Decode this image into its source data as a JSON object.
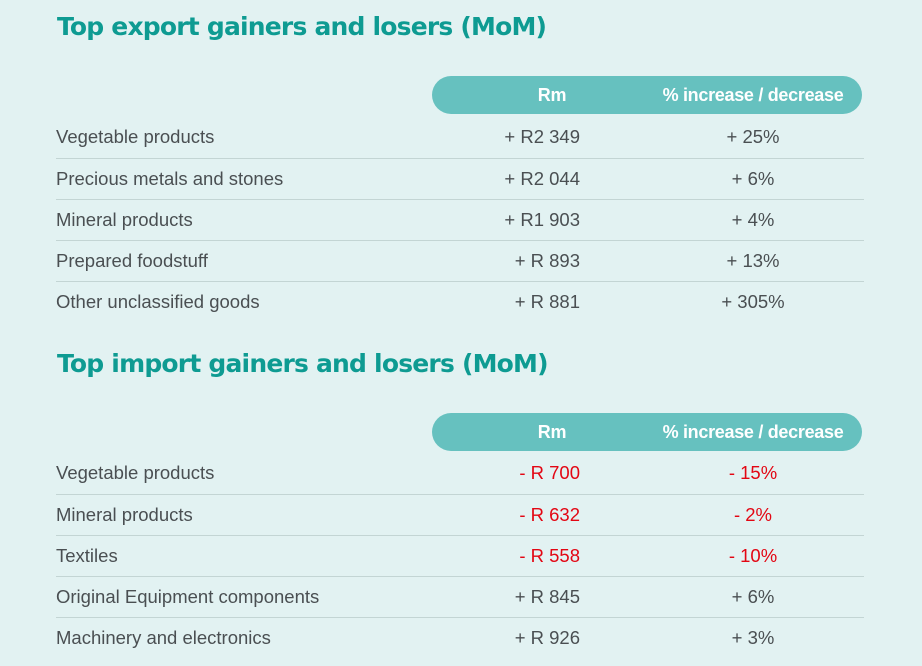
{
  "tables": [
    {
      "title": "Top export gainers and losers (MoM)",
      "header": {
        "rm": "Rm",
        "pct": "% increase / decrease"
      },
      "rows": [
        {
          "label": "Vegetable products",
          "rm": "+ R2 349",
          "pct": "+ 25%",
          "negative": false
        },
        {
          "label": "Precious metals and stones",
          "rm": "+ R2 044",
          "pct": "+ 6%",
          "negative": false
        },
        {
          "label": "Mineral products",
          "rm": "+ R1 903",
          "pct": "+ 4%",
          "negative": false
        },
        {
          "label": "Prepared foodstuff",
          "rm": "+ R 893",
          "pct": "+ 13%",
          "negative": false
        },
        {
          "label": "Other unclassified goods",
          "rm": "+ R 881",
          "pct": "+ 305%",
          "negative": false
        }
      ]
    },
    {
      "title": "Top import gainers and losers (MoM)",
      "header": {
        "rm": "Rm",
        "pct": "% increase / decrease"
      },
      "rows": [
        {
          "label": "Vegetable products",
          "rm": "- R 700",
          "pct": "- 15%",
          "negative": true
        },
        {
          "label": "Mineral products",
          "rm": "- R 632",
          "pct": "- 2%",
          "negative": true
        },
        {
          "label": "Textiles",
          "rm": "- R 558",
          "pct": "- 10%",
          "negative": true
        },
        {
          "label": "Original Equipment components",
          "rm": "+ R 845",
          "pct": "+ 6%",
          "negative": false
        },
        {
          "label": "Machinery and electronics",
          "rm": "+ R 926",
          "pct": "+ 3%",
          "negative": false
        }
      ]
    }
  ],
  "colors": {
    "background": "#e2f2f2",
    "title": "#0e9b92",
    "header_pill": "#66c1bf",
    "text": "#4a4f52",
    "negative": "#e30613",
    "divider": "#c3d5d4"
  }
}
